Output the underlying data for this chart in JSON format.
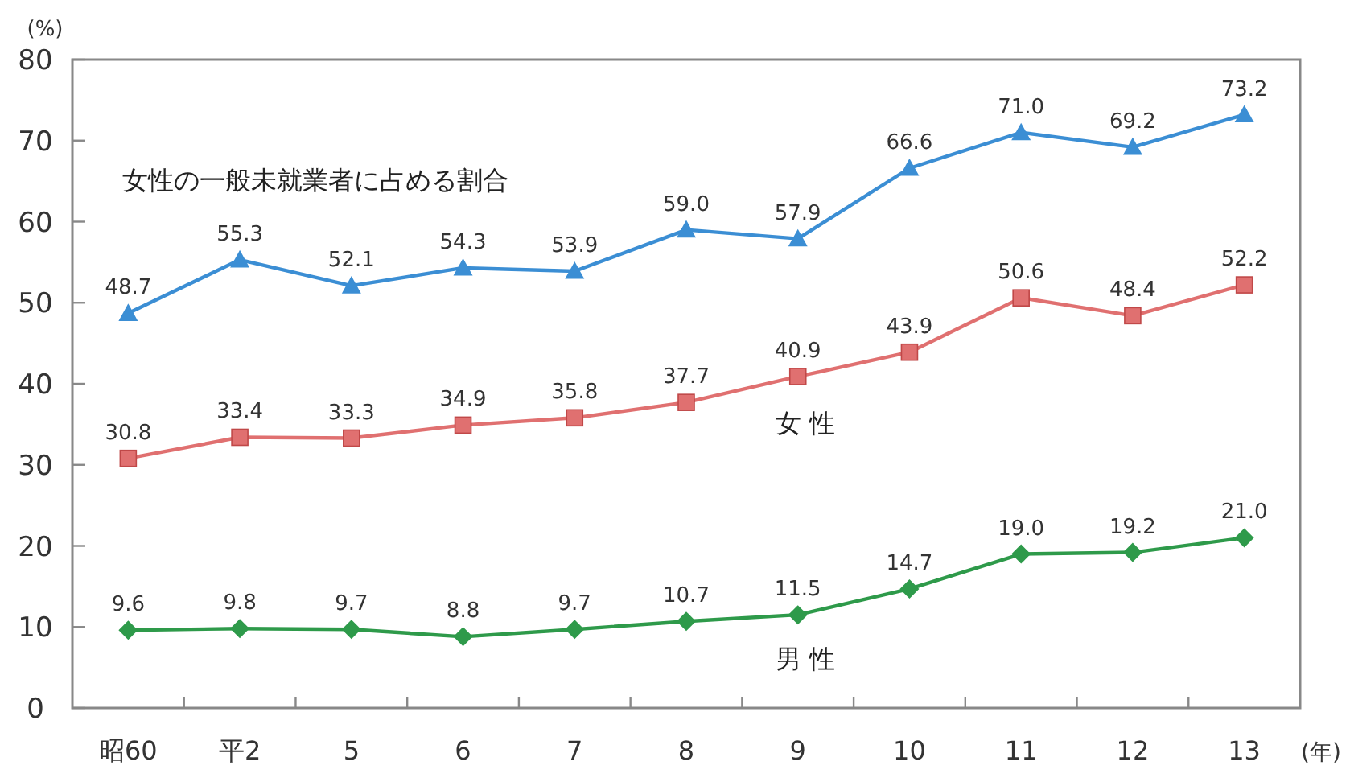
{
  "chart_data": {
    "type": "line",
    "ylabel": "(%)",
    "xlabel": "(年)",
    "categories": [
      "昭60",
      "平2",
      "5",
      "6",
      "7",
      "8",
      "9",
      "10",
      "11",
      "12",
      "13"
    ],
    "ylim": [
      0,
      80
    ],
    "yticks": [
      0,
      10,
      20,
      30,
      40,
      50,
      60,
      70,
      80
    ],
    "series": [
      {
        "name": "女性の一般未就業者に占める割合",
        "color": "#3b8ed4",
        "marker": "triangle",
        "values": [
          48.7,
          55.3,
          52.1,
          54.3,
          53.9,
          59.0,
          57.9,
          66.6,
          71.0,
          69.2,
          73.2
        ],
        "value_labels": [
          "48.7",
          "55.3",
          "52.1",
          "54.3",
          "53.9",
          "59.0",
          "57.9",
          "66.6",
          "71.0",
          "69.2",
          "73.2"
        ]
      },
      {
        "name": "女 性",
        "color": "#e07070",
        "marker": "square",
        "values": [
          30.8,
          33.4,
          33.3,
          34.9,
          35.8,
          37.7,
          40.9,
          43.9,
          50.6,
          48.4,
          52.2
        ],
        "value_labels": [
          "30.8",
          "33.4",
          "33.3",
          "34.9",
          "35.8",
          "37.7",
          "40.9",
          "43.9",
          "50.6",
          "48.4",
          "52.2"
        ]
      },
      {
        "name": "男 性",
        "color": "#2e9a4a",
        "marker": "diamond",
        "values": [
          9.6,
          9.8,
          9.7,
          8.8,
          9.7,
          10.7,
          11.5,
          14.7,
          19.0,
          19.2,
          21.0
        ],
        "value_labels": [
          "9.6",
          "9.8",
          "9.7",
          "8.8",
          "9.7",
          "10.7",
          "11.5",
          "14.7",
          "19.0",
          "19.2",
          "21.0"
        ]
      }
    ]
  }
}
